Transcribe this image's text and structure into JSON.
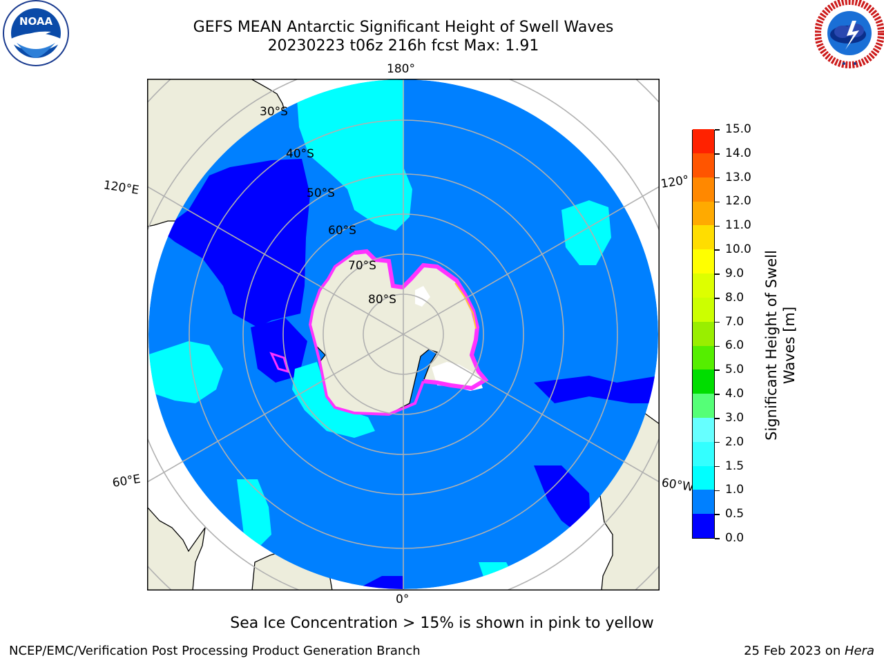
{
  "title": {
    "line1": "GEFS MEAN Antarctic Significant Height of Swell Waves",
    "line2": "20230223 t06z 216h fcst   Max: 1.91"
  },
  "logos": {
    "left": {
      "icon": "noaa-logo",
      "text": "NOAA",
      "ring_text": "NATIONAL OCEANIC AND ATMOSPHERIC ADMINISTRATION · U.S. DEPARTMENT OF COMMERCE"
    },
    "right": {
      "icon": "national-weather-service-logo",
      "ring_text": "NATIONAL WEATHER SERVICE"
    }
  },
  "map": {
    "projection": "south-polar-stereographic",
    "longitude_labels": {
      "top": "180°",
      "bottom": "0°",
      "left_upper": "120°E",
      "left_lower": "60°E",
      "right_upper": "120°",
      "right_lower": "60°W"
    },
    "latitude_labels": [
      "30°S",
      "40°S",
      "50°S",
      "60°S",
      "70°S",
      "80°S"
    ],
    "colors": {
      "land": "#ededdc",
      "ocean_default": "#0080ff",
      "grid": "#b0b0b0",
      "sea_ice_pink": "#ff33ff",
      "sea_ice_yellow": "#ffcc33"
    }
  },
  "colorbar": {
    "label_line1": "Significant Height of Swell",
    "label_line2": "Waves [m]",
    "ticks": [
      "0.0",
      "0.5",
      "1.0",
      "1.5",
      "2.0",
      "3.0",
      "4.0",
      "5.0",
      "6.0",
      "7.0",
      "8.0",
      "9.0",
      "10.0",
      "11.0",
      "12.0",
      "13.0",
      "14.0",
      "15.0"
    ],
    "colors": [
      "#0000ff",
      "#0080ff",
      "#00ffff",
      "#33ffff",
      "#66ffff",
      "#99ffff",
      "#55ff77",
      "#00dd00",
      "#55ee00",
      "#99ee00",
      "#ccff00",
      "#ddff00",
      "#ffff00",
      "#ffdd00",
      "#ffaa00",
      "#ff8800",
      "#ff5500",
      "#ff2200",
      "#ff0000"
    ]
  },
  "note": "Sea Ice Concentration > 15% is shown in pink to yellow",
  "footer": {
    "left": "NCEP/EMC/Verification Post Processing Product Generation Branch",
    "right_prefix": "25 Feb 2023 on ",
    "right_machine": "Hera"
  }
}
